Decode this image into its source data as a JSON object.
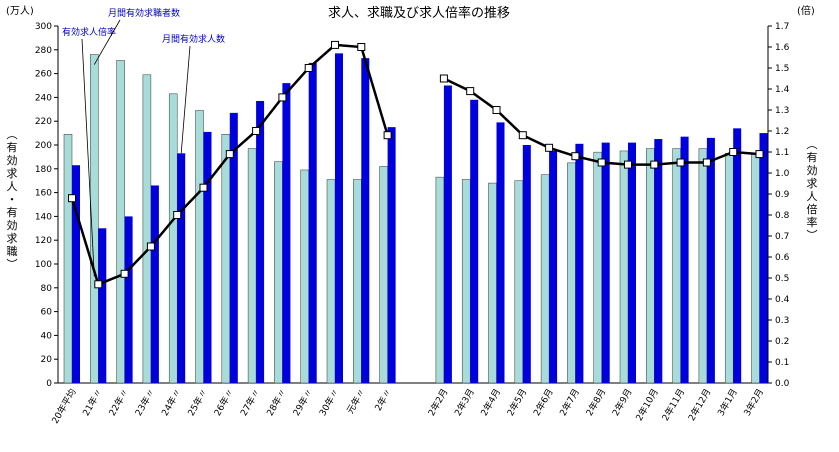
{
  "chart_data": {
    "type": "bar",
    "title": "求人、求職及び求人倍率の推移",
    "left_unit": "(万人)",
    "right_unit": "(倍)",
    "ylabel_left": "(有効求人・有効求職)",
    "ylabel_right": "(有効求人倍率)",
    "ylim_left": [
      0,
      300
    ],
    "yticks_left": [
      0,
      20,
      40,
      60,
      80,
      100,
      120,
      140,
      160,
      180,
      200,
      220,
      240,
      260,
      280,
      300
    ],
    "ylim_right": [
      0.0,
      1.7
    ],
    "yticks_right": [
      "0.0",
      "0.1",
      "0.2",
      "0.3",
      "0.4",
      "0.5",
      "0.6",
      "0.7",
      "0.8",
      "0.9",
      "1.0",
      "1.1",
      "1.2",
      "1.3",
      "1.4",
      "1.5",
      "1.6",
      "1.7"
    ],
    "grid": false,
    "categories": [
      "20年平均",
      "21年〃",
      "22年〃",
      "23年〃",
      "24年〃",
      "25年〃",
      "26年〃",
      "27年〃",
      "28年〃",
      "29年〃",
      "30年〃",
      "元年〃",
      "2年〃",
      "2年2月",
      "2年3月",
      "2年4月",
      "2年5月",
      "2年6月",
      "2年7月",
      "2年8月",
      "2年9月",
      "2年10月",
      "2年11月",
      "2年12月",
      "3年1月",
      "3年2月"
    ],
    "series": [
      {
        "name": "月間有効求職者数",
        "kind": "bar",
        "axis": "left",
        "color": "#a8dcd8",
        "values": [
          209,
          276,
          271,
          259,
          243,
          229,
          209,
          197,
          186,
          179,
          171,
          171,
          182,
          173,
          171,
          168,
          170,
          175,
          185,
          194,
          195,
          197,
          197,
          197,
          193,
          193
        ]
      },
      {
        "name": "月間有効求人数",
        "kind": "bar",
        "axis": "left",
        "color": "#0000dd",
        "values": [
          183,
          130,
          140,
          166,
          193,
          211,
          227,
          237,
          252,
          269,
          277,
          273,
          215,
          250,
          238,
          219,
          200,
          195,
          201,
          202,
          202,
          205,
          207,
          206,
          214,
          210
        ]
      },
      {
        "name": "有効求人倍率",
        "kind": "line",
        "axis": "right",
        "color": "#000000",
        "values": [
          0.88,
          0.47,
          0.52,
          0.65,
          0.8,
          0.93,
          1.09,
          1.2,
          1.36,
          1.5,
          1.61,
          1.6,
          1.18,
          1.45,
          1.39,
          1.3,
          1.18,
          1.12,
          1.08,
          1.05,
          1.04,
          1.04,
          1.05,
          1.05,
          1.1,
          1.09
        ]
      }
    ],
    "gap_after_index": 12,
    "annotations": [
      "有効求人倍率",
      "月間有効求職者数",
      "月間有効求人数"
    ]
  }
}
